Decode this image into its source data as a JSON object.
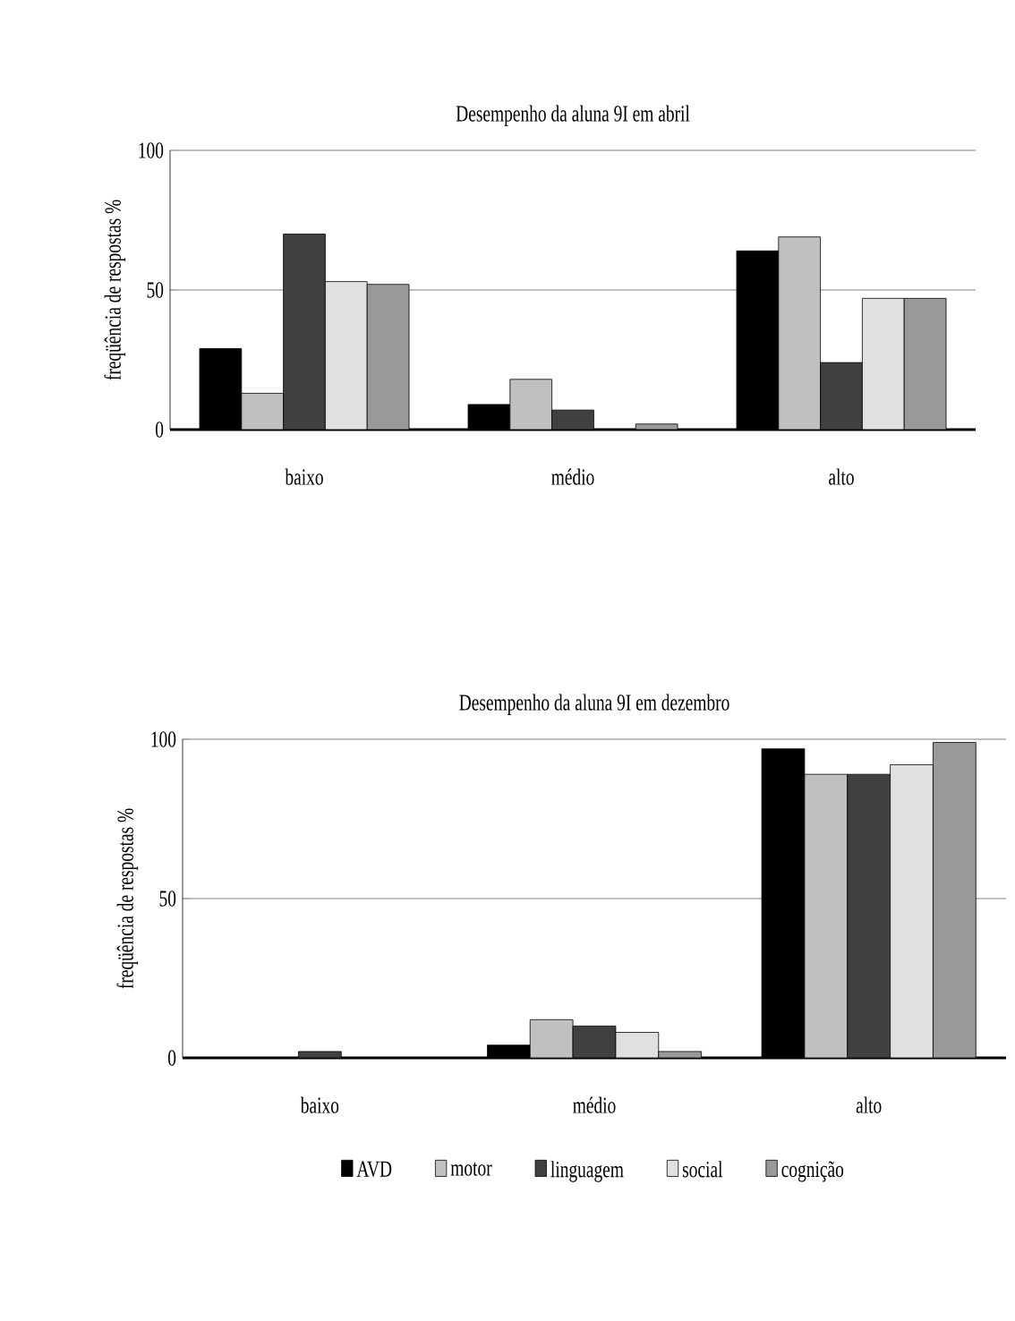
{
  "chart_data": [
    {
      "type": "bar",
      "title": "Desempenho da aluna 9I em abril",
      "ylabel": "freqüência de respostas %",
      "categories": [
        "baixo",
        "médio",
        "alto"
      ],
      "ylim": [
        0,
        100
      ],
      "yticks": [
        0,
        50,
        100
      ],
      "grid": "y",
      "legend": false,
      "series": [
        {
          "color": "#000000",
          "values": [
            29,
            9,
            64
          ]
        },
        {
          "color": "#c0c0c0",
          "values": [
            13,
            18,
            69
          ]
        },
        {
          "color": "#404040",
          "values": [
            70,
            7,
            24
          ]
        },
        {
          "color": "#e0e0e0",
          "values": [
            53,
            0,
            47
          ]
        },
        {
          "color": "#999999",
          "values": [
            52,
            2,
            47
          ]
        }
      ]
    },
    {
      "type": "bar",
      "title": "Desempenho da aluna 9I em dezembro",
      "ylabel": "freqüência de respostas %",
      "categories": [
        "baixo",
        "médio",
        "alto"
      ],
      "ylim": [
        0,
        100
      ],
      "yticks": [
        0,
        50,
        100
      ],
      "grid": "y",
      "legend": "bottom",
      "series": [
        {
          "name": "AVD",
          "color": "#000000",
          "values": [
            0,
            4,
            97
          ]
        },
        {
          "name": "motor",
          "color": "#c0c0c0",
          "values": [
            0,
            12,
            89
          ]
        },
        {
          "name": "linguagem",
          "color": "#404040",
          "values": [
            2,
            10,
            89
          ]
        },
        {
          "name": "social",
          "color": "#e0e0e0",
          "values": [
            0,
            8,
            92
          ]
        },
        {
          "name": "cognição",
          "color": "#999999",
          "values": [
            0,
            2,
            99
          ]
        }
      ]
    }
  ]
}
